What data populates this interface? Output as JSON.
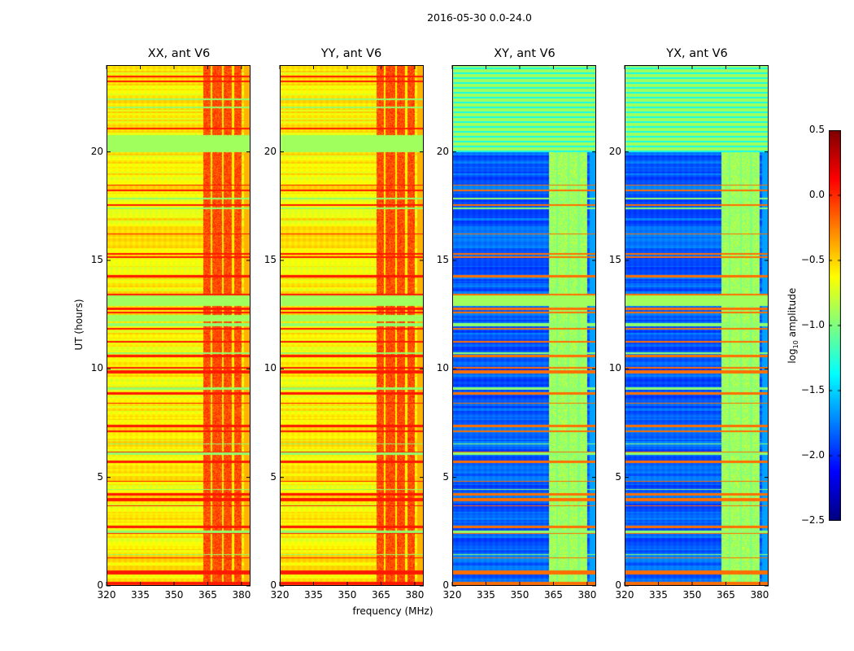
{
  "figure": {
    "title": "2016-05-30 0.0-24.0",
    "xlabel": "frequency (MHz)",
    "ylabel": "UT (hours)"
  },
  "chart_data": [
    {
      "type": "heatmap",
      "title": "XX, ant V6",
      "xlim": [
        320,
        384
      ],
      "ylim": [
        0,
        24
      ],
      "xticks": [
        320,
        335,
        350,
        365,
        380
      ],
      "yticks": [
        0,
        5,
        10,
        15,
        20
      ],
      "base_level_log10": -0.6,
      "rfi_band_mhz": [
        363,
        380
      ],
      "rfi_band_level_log10": -0.1,
      "flagged_hours": [
        [
          20.0,
          20.8
        ],
        [
          12.9,
          13.4
        ],
        [
          12.2,
          12.5
        ]
      ]
    },
    {
      "type": "heatmap",
      "title": "YY, ant V6",
      "xlim": [
        320,
        384
      ],
      "ylim": [
        0,
        24
      ],
      "xticks": [
        320,
        335,
        350,
        365,
        380
      ],
      "yticks": [
        0,
        5,
        10,
        15,
        20
      ],
      "base_level_log10": -0.6,
      "rfi_band_mhz": [
        363,
        380
      ],
      "rfi_band_level_log10": -0.1,
      "flagged_hours": [
        [
          20.0,
          20.8
        ],
        [
          12.9,
          13.4
        ],
        [
          12.2,
          12.5
        ]
      ]
    },
    {
      "type": "heatmap",
      "title": "XY, ant V6",
      "xlim": [
        320,
        384
      ],
      "ylim": [
        0,
        24
      ],
      "xticks": [
        320,
        335,
        350,
        365,
        380
      ],
      "yticks": [
        0,
        5,
        10,
        15,
        20
      ],
      "base_level_log10": -1.85,
      "rfi_band_mhz": [
        363,
        380
      ],
      "rfi_band_level_log10": -0.9,
      "flagged_hours": [
        [
          20.0,
          24.0
        ],
        [
          12.9,
          13.4
        ]
      ]
    },
    {
      "type": "heatmap",
      "title": "YX, ant V6",
      "xlim": [
        320,
        384
      ],
      "ylim": [
        0,
        24
      ],
      "xticks": [
        320,
        335,
        350,
        365,
        380
      ],
      "yticks": [
        0,
        5,
        10,
        15,
        20
      ],
      "base_level_log10": -1.85,
      "rfi_band_mhz": [
        363,
        380
      ],
      "rfi_band_level_log10": -0.9,
      "flagged_hours": [
        [
          20.0,
          24.0
        ],
        [
          12.9,
          13.4
        ]
      ]
    }
  ],
  "colorbar": {
    "label_prefix": "log",
    "label_sub": "10",
    "label_suffix": " amplitude",
    "range": [
      -2.5,
      0.5
    ],
    "ticks": [
      "0.5",
      "0.0",
      "−0.5",
      "−1.0",
      "−1.5",
      "−2.0",
      "−2.5"
    ],
    "tick_values": [
      0.5,
      0.0,
      -0.5,
      -1.0,
      -1.5,
      -2.0,
      -2.5
    ],
    "colormap": "jet"
  }
}
